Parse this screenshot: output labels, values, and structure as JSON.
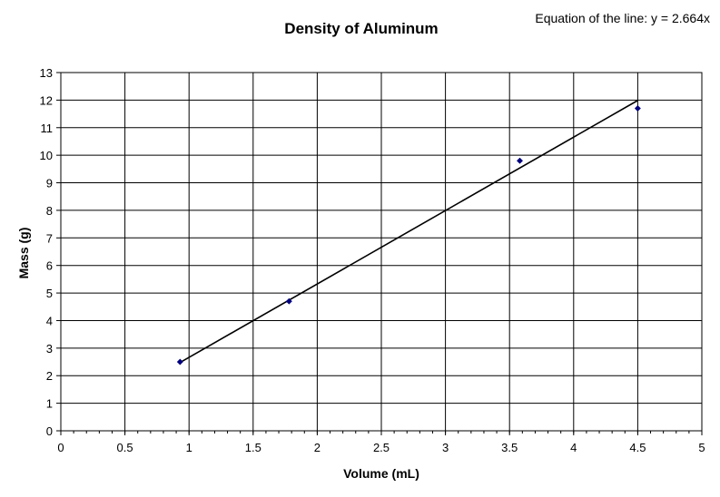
{
  "chart_data": {
    "type": "scatter",
    "title": "Density of Aluminum",
    "annotation": "Equation of the line: y = 2.664x",
    "xlabel": "Volume (mL)",
    "ylabel": "Mass (g)",
    "xlim": [
      0,
      5
    ],
    "ylim": [
      0,
      13
    ],
    "x_ticks": [
      0,
      0.5,
      1,
      1.5,
      2,
      2.5,
      3,
      3.5,
      4,
      4.5,
      5
    ],
    "x_tick_labels": [
      "0",
      "0.5",
      "1",
      "1.5",
      "2",
      "2.5",
      "3",
      "3.5",
      "4",
      "4.5",
      "5"
    ],
    "y_ticks": [
      0,
      1,
      2,
      3,
      4,
      5,
      6,
      7,
      8,
      9,
      10,
      11,
      12,
      13
    ],
    "y_tick_labels": [
      "0",
      "1",
      "2",
      "3",
      "4",
      "5",
      "6",
      "7",
      "8",
      "9",
      "10",
      "11",
      "12",
      "13"
    ],
    "grid": true,
    "series": [
      {
        "x": [
          0.93,
          1.78,
          3.58,
          4.5
        ],
        "y": [
          2.5,
          4.7,
          9.8,
          11.7
        ],
        "color": "#000080"
      }
    ],
    "trendline": {
      "slope": 2.664,
      "x_range": [
        0.93,
        4.5
      ],
      "color": "#000000"
    }
  }
}
